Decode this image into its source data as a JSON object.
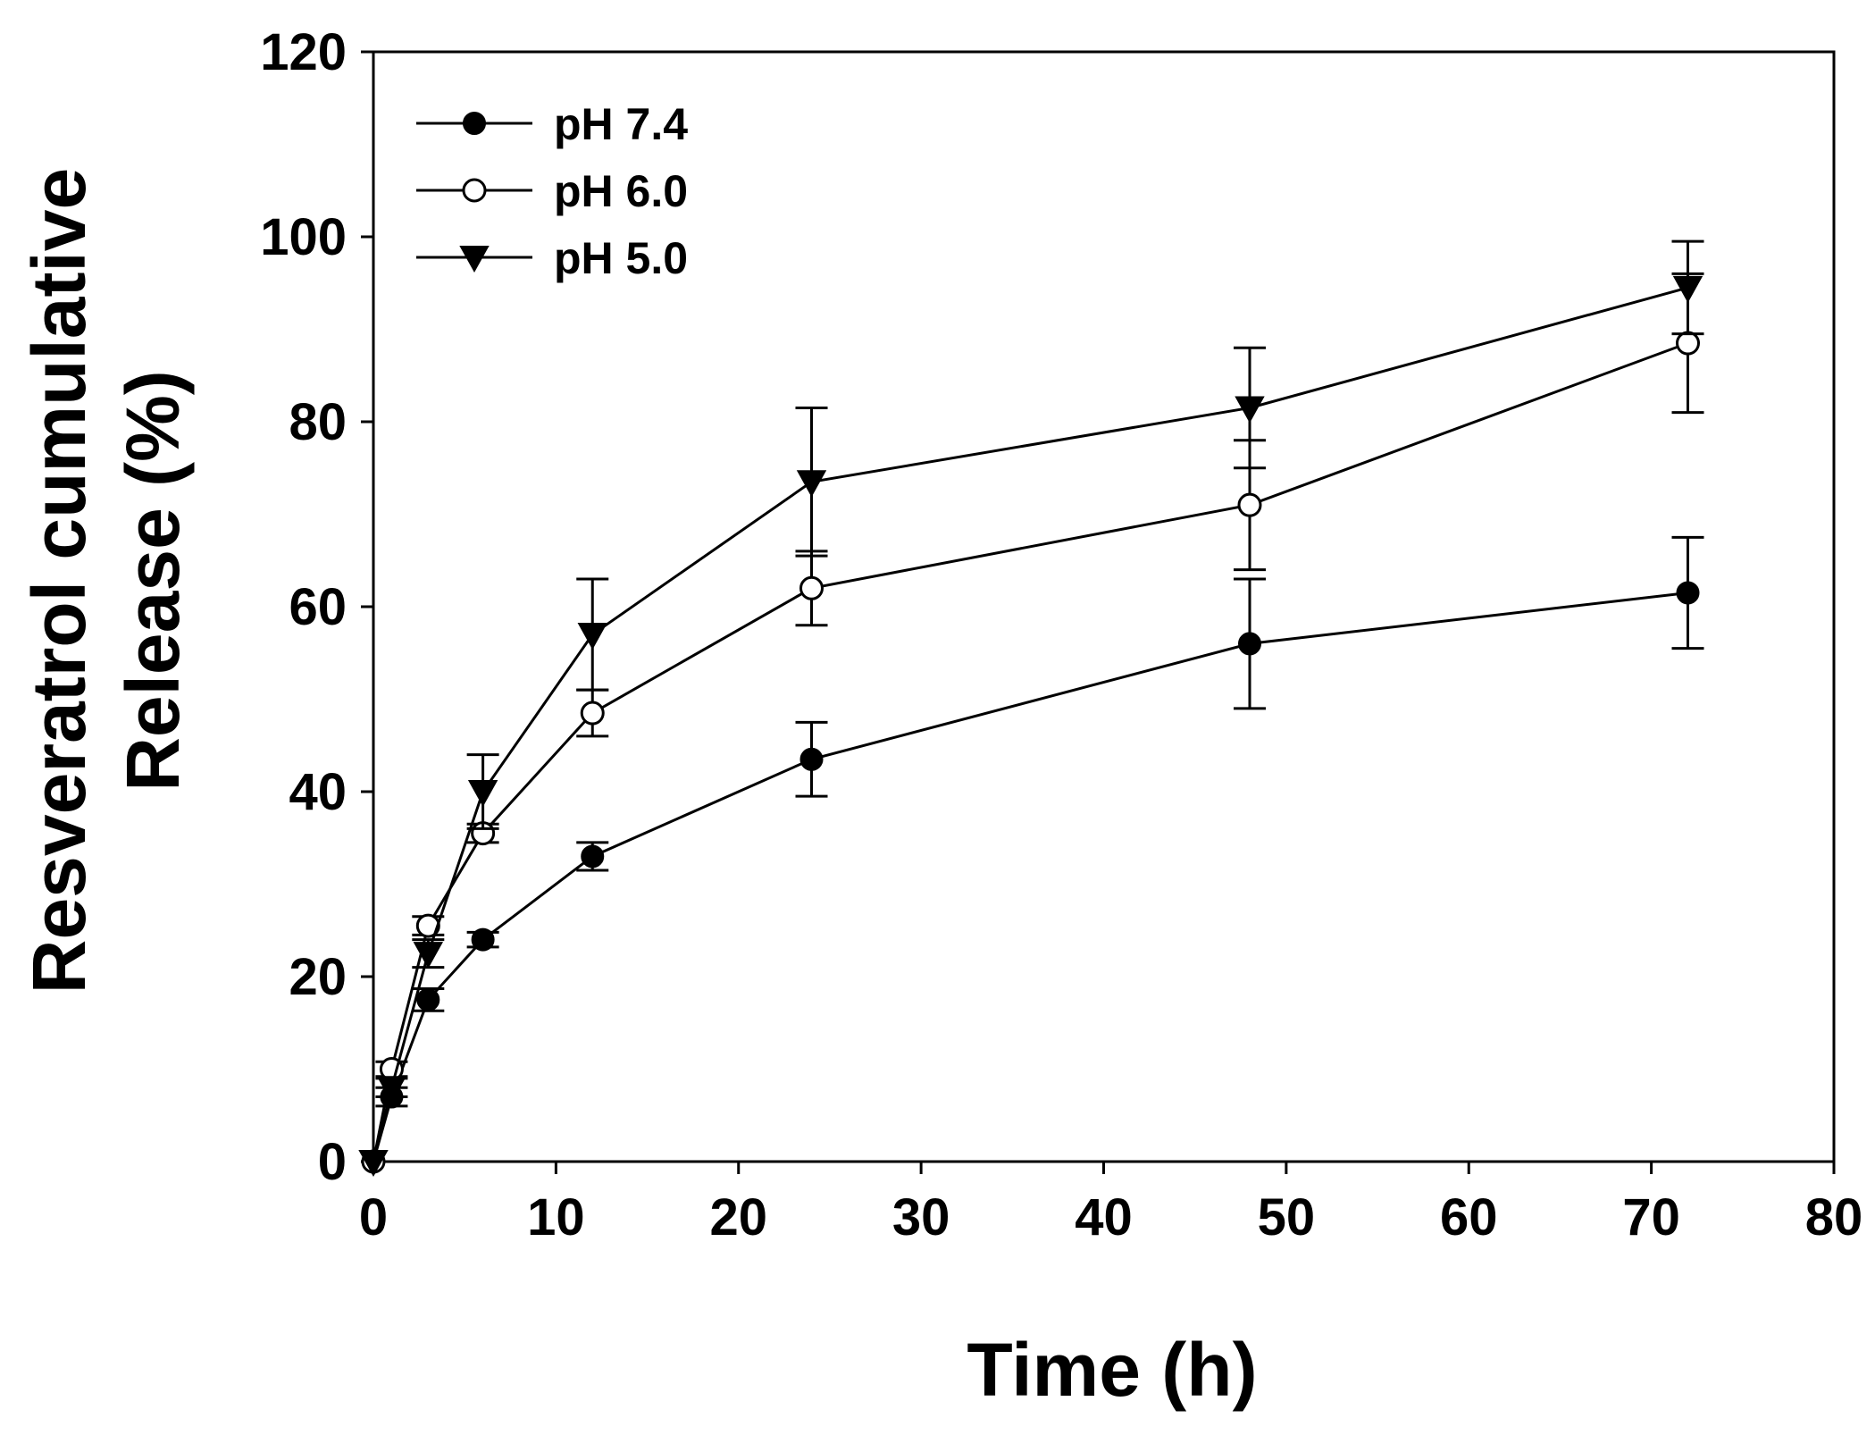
{
  "chart_data": {
    "type": "line",
    "xlabel": "Time (h)",
    "ylabel_line1": "Resveratrol cumulative",
    "ylabel_line2": "Release (%)",
    "xlim": [
      0,
      80
    ],
    "ylim": [
      0,
      120
    ],
    "xticks": [
      0,
      10,
      20,
      30,
      40,
      50,
      60,
      70,
      80
    ],
    "yticks": [
      0,
      20,
      40,
      60,
      80,
      100,
      120
    ],
    "xtick_labels": [
      "0",
      "10",
      "20",
      "30",
      "40",
      "50",
      "60",
      "70",
      "80"
    ],
    "ytick_labels": [
      "0",
      "20",
      "40",
      "60",
      "80",
      "100",
      "120"
    ],
    "grid": false,
    "legend_position": "top-left",
    "x": [
      0,
      1,
      3,
      6,
      12,
      24,
      48,
      72
    ],
    "series": [
      {
        "name": "pH 7.4",
        "marker": "filled-circle",
        "values": [
          0,
          7,
          17.5,
          24,
          33,
          43.5,
          56,
          61.5
        ],
        "errors": [
          0,
          1,
          1.2,
          0.8,
          1.5,
          4,
          7,
          6
        ]
      },
      {
        "name": "pH 6.0",
        "marker": "open-circle",
        "values": [
          0,
          10,
          25.5,
          35.5,
          48.5,
          62,
          71,
          88.5
        ],
        "errors": [
          0,
          0.8,
          1,
          1,
          2.5,
          4,
          7,
          7.5
        ]
      },
      {
        "name": "pH 5.0",
        "marker": "filled-triangle-down",
        "values": [
          0,
          8,
          22.5,
          40,
          57,
          73.5,
          81.5,
          94.5
        ],
        "errors": [
          0,
          1,
          1.5,
          4,
          6,
          8,
          6.5,
          5
        ]
      }
    ],
    "colors": {
      "line": "#000000",
      "background": "#ffffff"
    }
  }
}
